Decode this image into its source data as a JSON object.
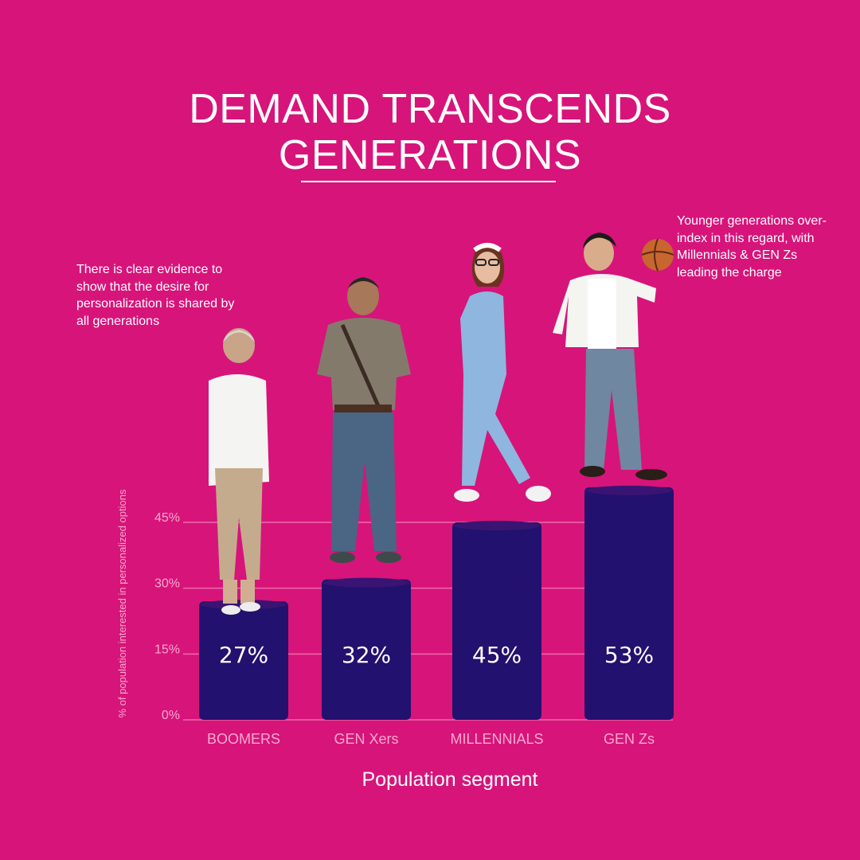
{
  "page": {
    "title_line1": "DEMAND TRANSCENDS",
    "title_line2": "GENERATIONS",
    "note_left": "There is clear evidence to show that the desire for personalization is shared by all generations",
    "note_right": "Younger generations over-index in this regard, with Millennials & GEN Zs leading the charge"
  },
  "colors": {
    "background": "#d7147a",
    "bar": "#22116e",
    "bar_top": "#3a1472",
    "grid": "#ee6aa9",
    "axis_text": "#f6a9cf"
  },
  "chart_data": {
    "type": "bar",
    "categories": [
      "BOOMERS",
      "GEN Xers",
      "MILLENNIALS",
      "GEN Zs"
    ],
    "values": [
      27,
      32,
      45,
      53
    ],
    "value_labels": [
      "27%",
      "32%",
      "45%",
      "53%"
    ],
    "yticks": [
      0,
      15,
      30,
      45
    ],
    "ytick_labels": [
      "0%",
      "15%",
      "30%",
      "45%"
    ],
    "ylim": [
      0,
      45
    ],
    "xlabel": "Population segment",
    "ylabel": "% of population interested in personalized options",
    "grid": true
  }
}
